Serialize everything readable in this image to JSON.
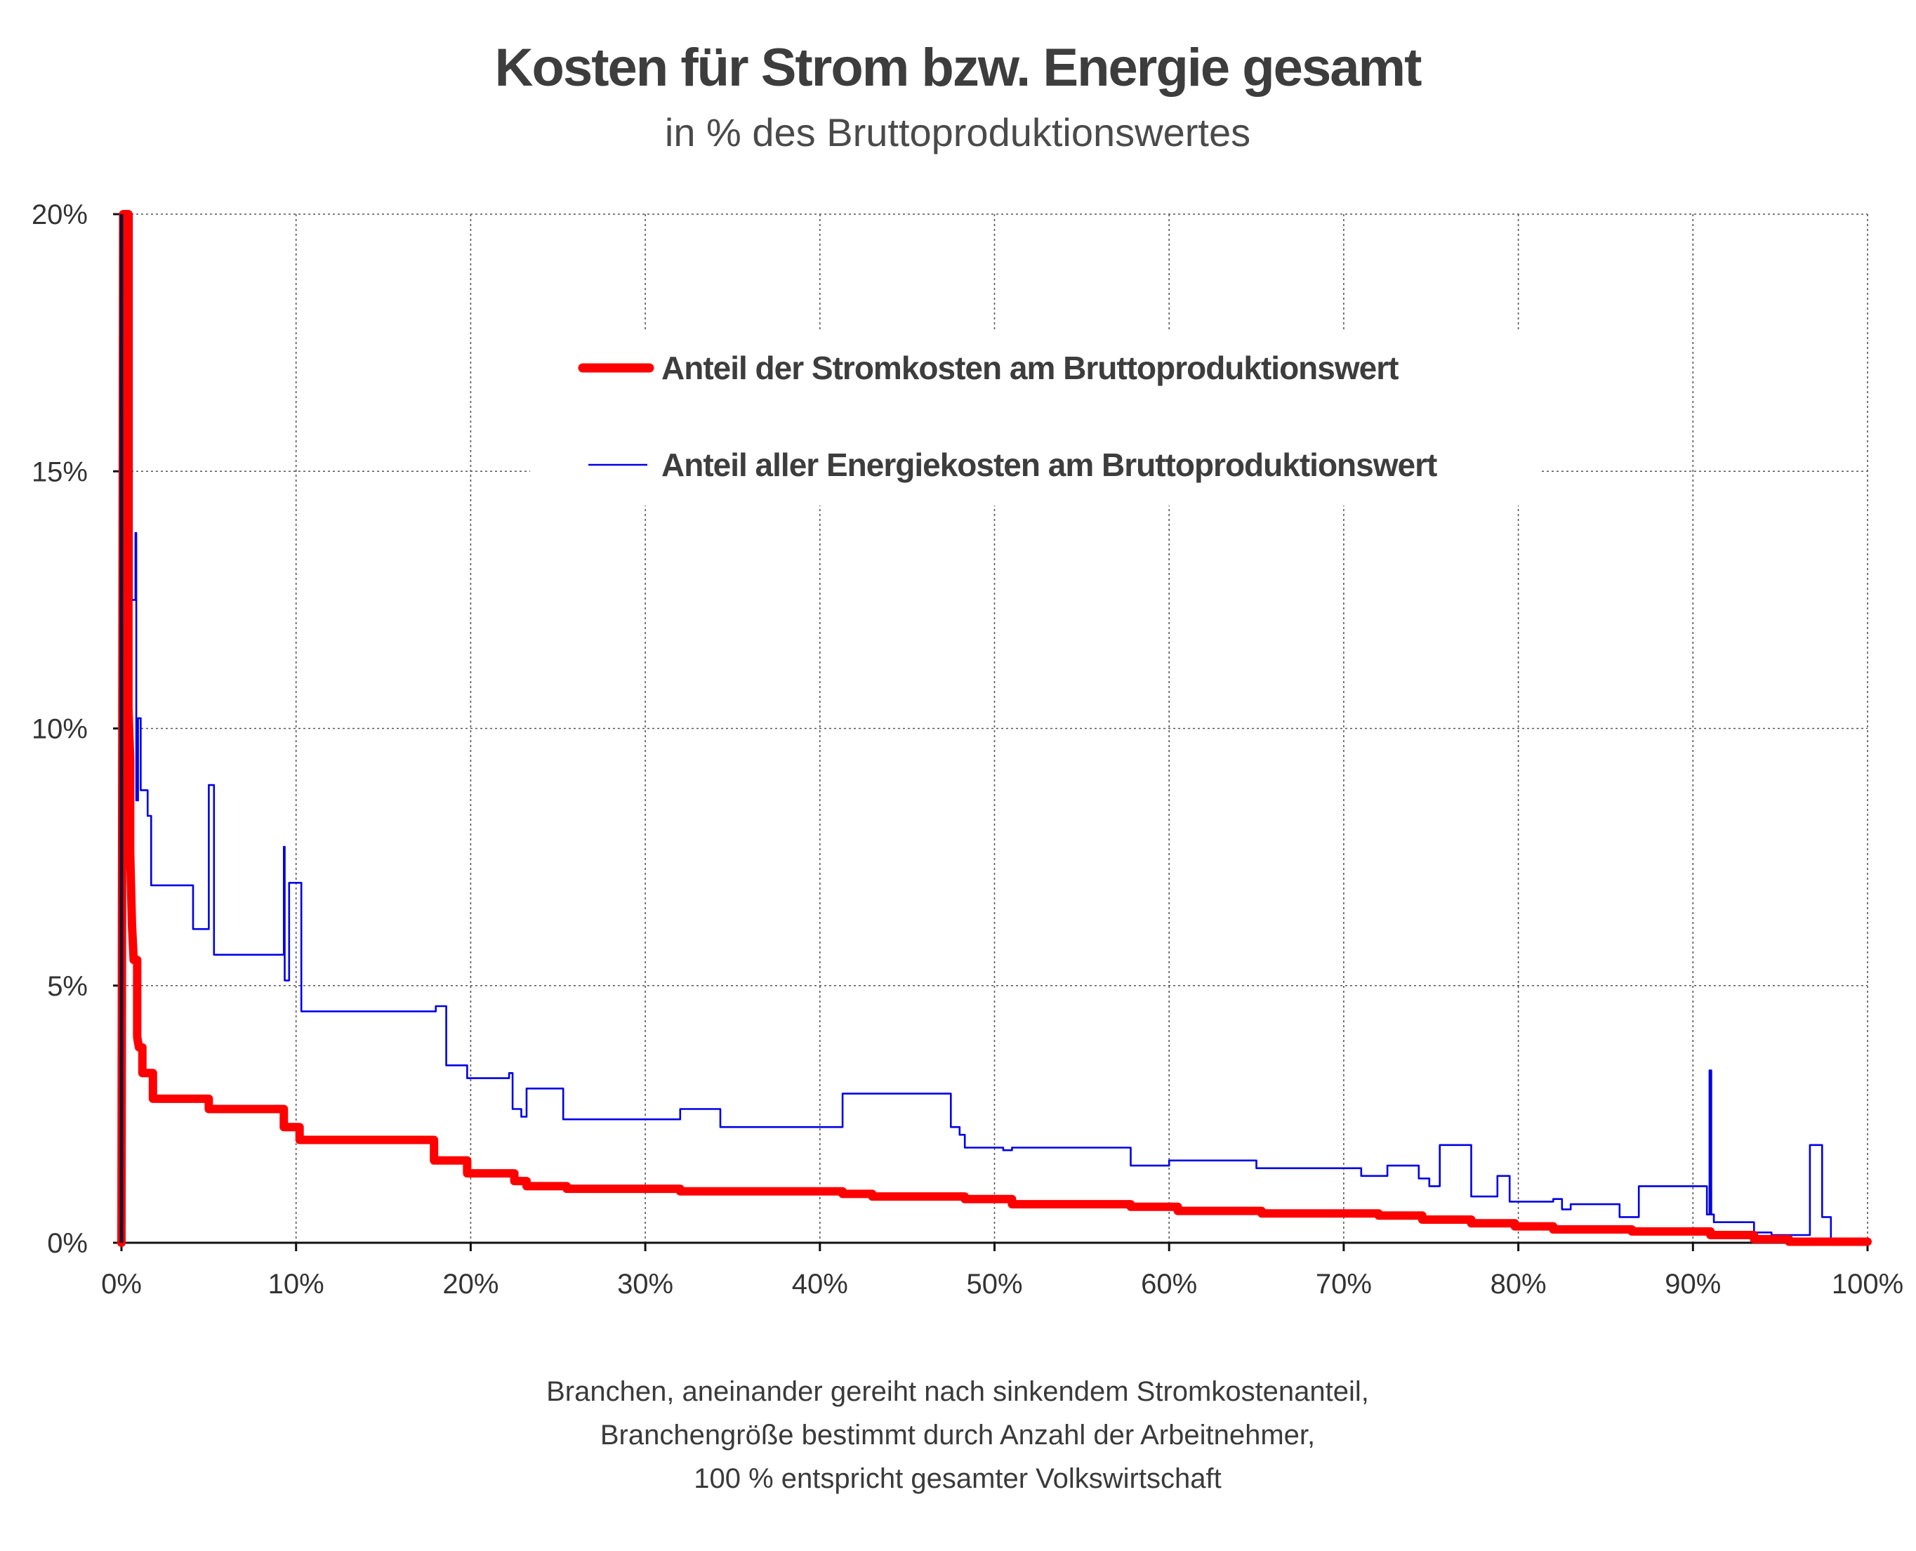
{
  "chart_data": {
    "type": "line",
    "title": "Kosten für Strom bzw. Energie gesamt",
    "subtitle": "in % des Bruttoproduktionswertes",
    "xlim": [
      0,
      100
    ],
    "ylim": [
      0,
      20
    ],
    "x_ticks": [
      "0%",
      "10%",
      "20%",
      "30%",
      "40%",
      "50%",
      "60%",
      "70%",
      "80%",
      "90%",
      "100%"
    ],
    "y_ticks": [
      "0%",
      "5%",
      "10%",
      "15%",
      "20%"
    ],
    "grid": true,
    "legend_position": "top-center",
    "caption": [
      "Branchen, aneinander gereiht nach sinkendem Stromkostenanteil,",
      "Branchengröße bestimmt durch Anzahl der Arbeitnehmer,",
      "100 % entspricht gesamter Volkswirtschaft"
    ],
    "series": [
      {
        "name": "Anteil der Stromkosten am Bruttoproduktionswert",
        "color": "#ff0000",
        "style": "step-thick",
        "points": [
          [
            0,
            0
          ],
          [
            0.1,
            20
          ],
          [
            0.4,
            20
          ],
          [
            0.4,
            10.4
          ],
          [
            0.5,
            9.4
          ],
          [
            0.5,
            7.6
          ],
          [
            0.6,
            6.2
          ],
          [
            0.7,
            5.5
          ],
          [
            0.9,
            5.5
          ],
          [
            0.9,
            4.0
          ],
          [
            1.0,
            3.8
          ],
          [
            1.2,
            3.8
          ],
          [
            1.2,
            3.3
          ],
          [
            1.8,
            3.3
          ],
          [
            1.8,
            2.8
          ],
          [
            5.0,
            2.8
          ],
          [
            5.0,
            2.6
          ],
          [
            9.3,
            2.6
          ],
          [
            9.3,
            2.25
          ],
          [
            10.2,
            2.25
          ],
          [
            10.2,
            2.0
          ],
          [
            17.9,
            2.0
          ],
          [
            17.9,
            1.6
          ],
          [
            19.8,
            1.6
          ],
          [
            19.8,
            1.35
          ],
          [
            22.5,
            1.35
          ],
          [
            22.5,
            1.2
          ],
          [
            23.2,
            1.2
          ],
          [
            23.2,
            1.1
          ],
          [
            25.5,
            1.1
          ],
          [
            25.5,
            1.05
          ],
          [
            32.0,
            1.05
          ],
          [
            32.0,
            1.0
          ],
          [
            41.3,
            1.0
          ],
          [
            41.3,
            0.95
          ],
          [
            43.0,
            0.95
          ],
          [
            43.0,
            0.9
          ],
          [
            48.3,
            0.9
          ],
          [
            48.3,
            0.85
          ],
          [
            51.0,
            0.85
          ],
          [
            51.0,
            0.75
          ],
          [
            57.8,
            0.75
          ],
          [
            57.8,
            0.7
          ],
          [
            60.5,
            0.7
          ],
          [
            60.5,
            0.62
          ],
          [
            65.3,
            0.62
          ],
          [
            65.3,
            0.57
          ],
          [
            72.0,
            0.57
          ],
          [
            72.0,
            0.53
          ],
          [
            74.5,
            0.53
          ],
          [
            74.5,
            0.45
          ],
          [
            77.3,
            0.45
          ],
          [
            77.3,
            0.38
          ],
          [
            79.8,
            0.38
          ],
          [
            79.8,
            0.32
          ],
          [
            82.0,
            0.32
          ],
          [
            82.0,
            0.26
          ],
          [
            86.5,
            0.26
          ],
          [
            86.5,
            0.22
          ],
          [
            91.0,
            0.22
          ],
          [
            91.0,
            0.15
          ],
          [
            93.5,
            0.15
          ],
          [
            93.5,
            0.07
          ],
          [
            95.5,
            0.07
          ],
          [
            95.5,
            0.02
          ],
          [
            100,
            0.02
          ]
        ]
      },
      {
        "name": "Anteil aller Energiekosten am Bruttoproduktionswert",
        "color": "#0000e6",
        "style": "step-thin",
        "points": [
          [
            0,
            0
          ],
          [
            0.15,
            20
          ],
          [
            0.6,
            20
          ],
          [
            0.6,
            12.5
          ],
          [
            0.8,
            12.5
          ],
          [
            0.8,
            13.8
          ],
          [
            0.85,
            13.8
          ],
          [
            0.85,
            8.6
          ],
          [
            0.95,
            8.6
          ],
          [
            0.95,
            10.2
          ],
          [
            1.1,
            10.2
          ],
          [
            1.1,
            8.8
          ],
          [
            1.5,
            8.8
          ],
          [
            1.5,
            8.3
          ],
          [
            1.7,
            8.3
          ],
          [
            1.7,
            6.95
          ],
          [
            4.1,
            6.95
          ],
          [
            4.1,
            6.1
          ],
          [
            5.0,
            6.1
          ],
          [
            5.0,
            8.9
          ],
          [
            5.3,
            8.9
          ],
          [
            5.3,
            5.6
          ],
          [
            9.3,
            5.6
          ],
          [
            9.3,
            7.7
          ],
          [
            9.35,
            7.7
          ],
          [
            9.35,
            5.1
          ],
          [
            9.6,
            5.1
          ],
          [
            9.6,
            7.0
          ],
          [
            10.3,
            7.0
          ],
          [
            10.3,
            4.5
          ],
          [
            18.0,
            4.5
          ],
          [
            18.0,
            4.6
          ],
          [
            18.6,
            4.6
          ],
          [
            18.6,
            3.45
          ],
          [
            19.8,
            3.45
          ],
          [
            19.8,
            3.2
          ],
          [
            22.2,
            3.2
          ],
          [
            22.2,
            3.3
          ],
          [
            22.4,
            3.3
          ],
          [
            22.4,
            2.6
          ],
          [
            22.9,
            2.6
          ],
          [
            22.9,
            2.45
          ],
          [
            23.2,
            2.45
          ],
          [
            23.2,
            3.0
          ],
          [
            25.3,
            3.0
          ],
          [
            25.3,
            2.4
          ],
          [
            32.0,
            2.4
          ],
          [
            32.0,
            2.6
          ],
          [
            34.3,
            2.6
          ],
          [
            34.3,
            2.25
          ],
          [
            41.3,
            2.25
          ],
          [
            41.3,
            2.9
          ],
          [
            47.5,
            2.9
          ],
          [
            47.5,
            2.25
          ],
          [
            48.0,
            2.25
          ],
          [
            48.0,
            2.1
          ],
          [
            48.3,
            2.1
          ],
          [
            48.3,
            1.85
          ],
          [
            50.5,
            1.85
          ],
          [
            50.5,
            1.8
          ],
          [
            51.0,
            1.8
          ],
          [
            51.0,
            1.85
          ],
          [
            57.8,
            1.85
          ],
          [
            57.8,
            1.5
          ],
          [
            60.0,
            1.5
          ],
          [
            60.0,
            1.6
          ],
          [
            65.0,
            1.6
          ],
          [
            65.0,
            1.45
          ],
          [
            71.0,
            1.45
          ],
          [
            71.0,
            1.3
          ],
          [
            72.5,
            1.3
          ],
          [
            72.5,
            1.5
          ],
          [
            74.3,
            1.5
          ],
          [
            74.3,
            1.25
          ],
          [
            74.9,
            1.25
          ],
          [
            74.9,
            1.1
          ],
          [
            75.5,
            1.1
          ],
          [
            75.5,
            1.9
          ],
          [
            77.3,
            1.9
          ],
          [
            77.3,
            0.9
          ],
          [
            78.8,
            0.9
          ],
          [
            78.8,
            1.3
          ],
          [
            79.5,
            1.3
          ],
          [
            79.5,
            0.8
          ],
          [
            82.0,
            0.8
          ],
          [
            82.0,
            0.85
          ],
          [
            82.5,
            0.85
          ],
          [
            82.5,
            0.65
          ],
          [
            83.0,
            0.65
          ],
          [
            83.0,
            0.75
          ],
          [
            85.8,
            0.75
          ],
          [
            85.8,
            0.5
          ],
          [
            86.9,
            0.5
          ],
          [
            86.9,
            1.1
          ],
          [
            90.8,
            1.1
          ],
          [
            90.8,
            0.55
          ],
          [
            90.95,
            0.55
          ],
          [
            90.95,
            3.35
          ],
          [
            91.05,
            3.35
          ],
          [
            91.05,
            0.55
          ],
          [
            91.2,
            0.55
          ],
          [
            91.2,
            0.4
          ],
          [
            93.5,
            0.4
          ],
          [
            93.5,
            0.2
          ],
          [
            94.5,
            0.2
          ],
          [
            94.5,
            0.15
          ],
          [
            96.7,
            0.15
          ],
          [
            96.7,
            1.9
          ],
          [
            97.4,
            1.9
          ],
          [
            97.4,
            0.5
          ],
          [
            97.9,
            0.5
          ],
          [
            97.9,
            0.05
          ],
          [
            100,
            0.05
          ]
        ]
      }
    ]
  }
}
